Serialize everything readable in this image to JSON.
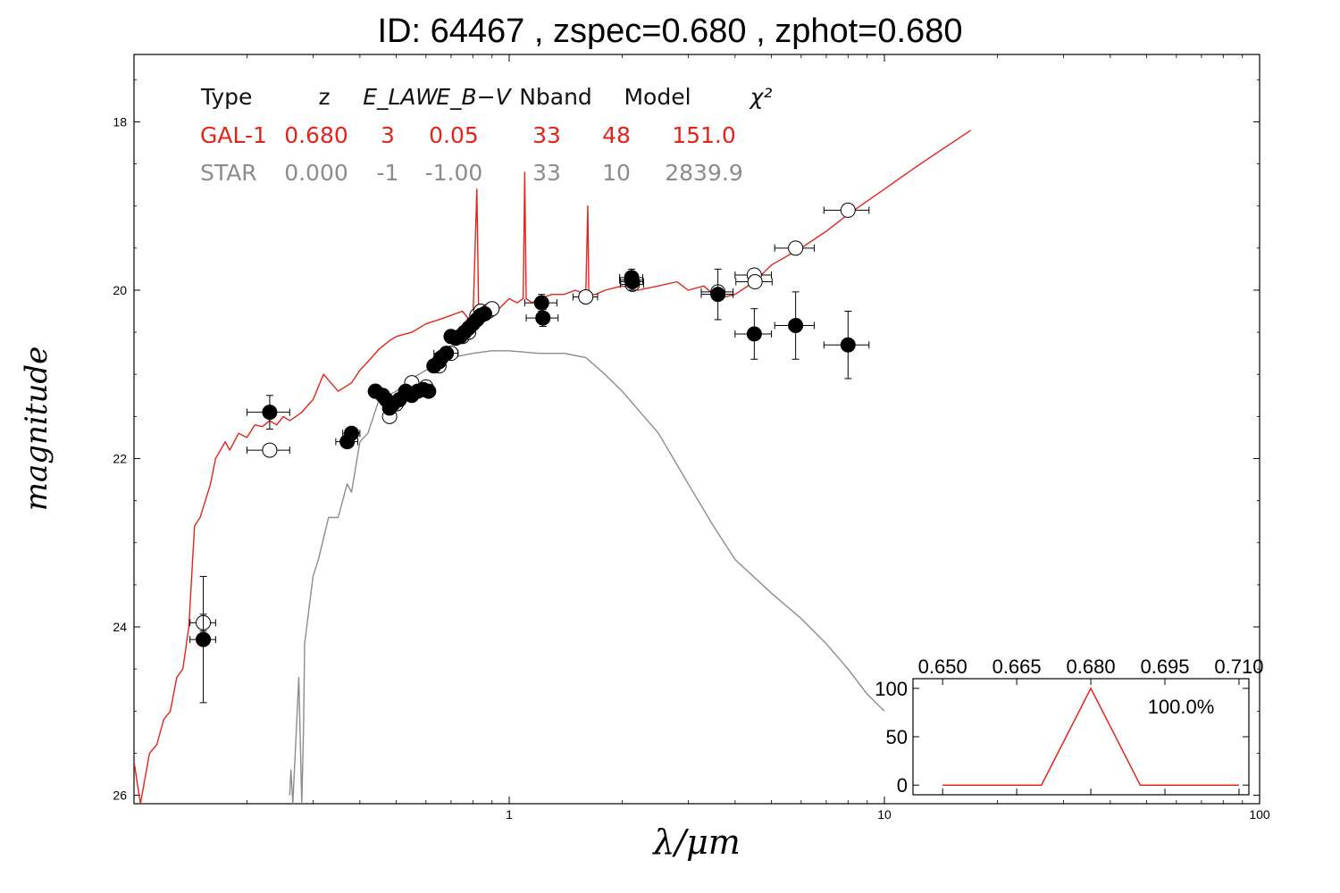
{
  "title": "ID:  64467 , zspec=0.680 , zphot=0.680",
  "chart_data": [
    {
      "type": "scatter",
      "xlabel": "λ/μm",
      "ylabel": "magnitude",
      "xscale": "log",
      "xlim": [
        0.1,
        100
      ],
      "ylim": [
        26.1,
        17.2
      ],
      "y_inverted": true,
      "xticks": [
        1,
        10,
        100
      ],
      "xtick_labels": [
        "1",
        "10",
        "100"
      ],
      "yticks": [
        18,
        20,
        22,
        24,
        26
      ],
      "ytick_labels": [
        "18",
        "20",
        "22",
        "24",
        "26"
      ],
      "grid": false,
      "colors": {
        "galaxy": "#e3241b",
        "star": "#8c8c8c"
      },
      "summary_table": {
        "headers": [
          "Type",
          "z",
          "E_LAW",
          "E_B−V",
          "Nband",
          "Model",
          "χ²"
        ],
        "rows": [
          {
            "type": "GAL-1",
            "z": "0.680",
            "elaw": "3",
            "ebv": "0.05",
            "nband": "33",
            "model": "48",
            "chi2": "151.0"
          },
          {
            "type": "STAR",
            "z": "0.000",
            "elaw": "-1",
            "ebv": "-1.00",
            "nband": "33",
            "model": "10",
            "chi2": "2839.9"
          }
        ]
      },
      "series": [
        {
          "name": "GAL-1",
          "kind": "line",
          "color": "#e3241b",
          "x": [
            0.1,
            0.104,
            0.11,
            0.115,
            0.12,
            0.125,
            0.13,
            0.135,
            0.14,
            0.145,
            0.15,
            0.155,
            0.16,
            0.165,
            0.17,
            0.175,
            0.18,
            0.19,
            0.2,
            0.21,
            0.22,
            0.23,
            0.24,
            0.25,
            0.26,
            0.27,
            0.28,
            0.3,
            0.32,
            0.35,
            0.38,
            0.4,
            0.42,
            0.45,
            0.48,
            0.5,
            0.55,
            0.6,
            0.65,
            0.7,
            0.75,
            0.8,
            0.82,
            0.83,
            0.84,
            0.85,
            0.9,
            0.95,
            1.0,
            1.05,
            1.09,
            1.1,
            1.11,
            1.15,
            1.2,
            1.3,
            1.4,
            1.5,
            1.6,
            1.62,
            1.63,
            1.64,
            1.7,
            1.8,
            2.0,
            2.2,
            2.5,
            2.8,
            3.0,
            3.3,
            3.6,
            4.0,
            4.5,
            5.0,
            6.0,
            7.0,
            8.0,
            10.0,
            12.0,
            14.0,
            17.0
          ],
          "y": [
            25.6,
            26.1,
            25.5,
            25.4,
            25.1,
            25.0,
            24.6,
            24.5,
            24.0,
            22.8,
            22.7,
            22.5,
            22.3,
            22.0,
            21.9,
            21.8,
            21.9,
            21.7,
            21.75,
            21.6,
            21.62,
            21.55,
            21.6,
            21.5,
            21.55,
            21.5,
            21.45,
            21.3,
            21.0,
            21.2,
            21.1,
            20.95,
            20.85,
            20.7,
            20.6,
            20.55,
            20.5,
            20.4,
            20.35,
            20.3,
            20.25,
            20.4,
            18.8,
            20.4,
            20.3,
            20.35,
            20.3,
            20.2,
            20.1,
            20.15,
            20.1,
            18.6,
            20.1,
            20.15,
            20.1,
            20.05,
            20.05,
            20.0,
            20.05,
            19.0,
            20.0,
            20.05,
            20.05,
            20.0,
            19.95,
            20.0,
            19.95,
            19.9,
            20.0,
            19.95,
            20.1,
            20.05,
            19.9,
            19.7,
            19.5,
            19.3,
            19.1,
            18.8,
            18.55,
            18.35,
            18.1
          ]
        },
        {
          "name": "STAR",
          "kind": "line",
          "color": "#8c8c8c",
          "x": [
            0.26,
            0.262,
            0.265,
            0.275,
            0.28,
            0.283,
            0.285,
            0.3,
            0.31,
            0.33,
            0.35,
            0.37,
            0.38,
            0.4,
            0.42,
            0.45,
            0.5,
            0.55,
            0.6,
            0.7,
            0.8,
            0.9,
            1.0,
            1.2,
            1.4,
            1.6,
            1.8,
            2.0,
            2.5,
            3.0,
            3.5,
            4.0,
            5.0,
            6.0,
            7.0,
            8.0,
            9.0,
            10.0
          ],
          "y": [
            26.0,
            25.7,
            26.1,
            24.6,
            26.1,
            25.2,
            24.2,
            23.4,
            23.2,
            22.7,
            22.7,
            22.3,
            22.4,
            21.8,
            21.7,
            21.3,
            21.2,
            21.05,
            20.95,
            20.8,
            20.75,
            20.72,
            20.72,
            20.75,
            20.75,
            20.8,
            21.0,
            21.2,
            21.7,
            22.3,
            22.8,
            23.2,
            23.6,
            23.9,
            24.2,
            24.5,
            24.8,
            25.0
          ]
        },
        {
          "name": "observed",
          "kind": "points",
          "color": "#000000",
          "x": [
            0.153,
            0.23,
            0.37,
            0.38,
            0.44,
            0.46,
            0.47,
            0.48,
            0.49,
            0.51,
            0.53,
            0.55,
            0.57,
            0.59,
            0.61,
            0.63,
            0.65,
            0.66,
            0.68,
            0.7,
            0.72,
            0.74,
            0.76,
            0.78,
            0.8,
            0.82,
            0.84,
            0.86,
            1.22,
            1.23,
            2.12,
            2.13,
            3.6,
            4.5,
            5.8,
            8.0
          ],
          "y": [
            24.15,
            21.45,
            21.8,
            21.7,
            21.2,
            21.25,
            21.3,
            21.4,
            21.35,
            21.3,
            21.2,
            21.25,
            21.2,
            21.18,
            21.2,
            20.9,
            20.85,
            20.8,
            20.75,
            20.55,
            20.57,
            20.55,
            20.5,
            20.45,
            20.4,
            20.35,
            20.3,
            20.28,
            20.15,
            20.33,
            19.85,
            19.9,
            20.05,
            20.52,
            20.42,
            20.65
          ],
          "xerr": [
            0.012,
            0.03,
            0.025,
            0.02,
            0.01,
            0.01,
            0.01,
            0.01,
            0.01,
            0.01,
            0.01,
            0.01,
            0.01,
            0.01,
            0.01,
            0.01,
            0.01,
            0.01,
            0.05,
            0.02,
            0.02,
            0.02,
            0.02,
            0.02,
            0.02,
            0.02,
            0.02,
            0.02,
            0.12,
            0.12,
            0.15,
            0.15,
            0.35,
            0.5,
            0.7,
            1.1
          ],
          "yerr": [
            0.75,
            0.2,
            0.05,
            0.05,
            0.05,
            0.05,
            0.05,
            0.05,
            0.05,
            0.05,
            0.05,
            0.05,
            0.05,
            0.05,
            0.05,
            0.05,
            0.05,
            0.05,
            0.05,
            0.05,
            0.05,
            0.05,
            0.05,
            0.05,
            0.05,
            0.05,
            0.05,
            0.05,
            0.1,
            0.1,
            0.1,
            0.1,
            0.3,
            0.3,
            0.4,
            0.4
          ]
        },
        {
          "name": "model",
          "kind": "points",
          "color": "#ffffff",
          "x": [
            0.153,
            0.23,
            0.44,
            0.48,
            0.5,
            0.55,
            0.6,
            0.65,
            0.7,
            0.75,
            0.78,
            0.82,
            0.84,
            0.88,
            0.9,
            1.6,
            2.12,
            2.13,
            3.6,
            4.5,
            4.52,
            5.8,
            8.0
          ],
          "y": [
            23.95,
            21.9,
            21.2,
            21.5,
            21.35,
            21.1,
            21.15,
            20.9,
            20.75,
            20.55,
            20.5,
            20.3,
            20.25,
            20.25,
            20.22,
            20.08,
            19.88,
            19.93,
            20.02,
            19.82,
            19.9,
            19.5,
            19.05
          ],
          "xerr": [
            0.012,
            0.03,
            0.01,
            0.01,
            0.01,
            0.01,
            0.01,
            0.01,
            0.01,
            0.02,
            0.02,
            0.02,
            0.02,
            0.02,
            0.02,
            0.12,
            0.15,
            0.15,
            0.35,
            0.5,
            0.5,
            0.7,
            1.1
          ],
          "yerr": [
            0.1,
            0.02,
            0.02,
            0.02,
            0.02,
            0.02,
            0.02,
            0.02,
            0.02,
            0.02,
            0.02,
            0.02,
            0.02,
            0.02,
            0.02,
            0.02,
            0.02,
            0.02,
            0.02,
            0.02,
            0.02,
            0.02,
            0.02
          ]
        }
      ]
    },
    {
      "type": "line",
      "name": "inset",
      "xlim": [
        0.644,
        0.712
      ],
      "ylim": [
        -10,
        110
      ],
      "xticks": [
        0.65,
        0.665,
        0.68,
        0.695,
        0.71
      ],
      "xtick_labels": [
        "0.650",
        "0.665",
        "0.680",
        "0.695",
        "0.710"
      ],
      "yticks": [
        0,
        50,
        100
      ],
      "ytick_labels": [
        "0",
        "50",
        "100"
      ],
      "annotation": "100.0%",
      "series": [
        {
          "color": "#e3241b",
          "x": [
            0.65,
            0.67,
            0.68,
            0.69,
            0.71
          ],
          "y": [
            0,
            0,
            100,
            0,
            0
          ]
        }
      ]
    }
  ]
}
